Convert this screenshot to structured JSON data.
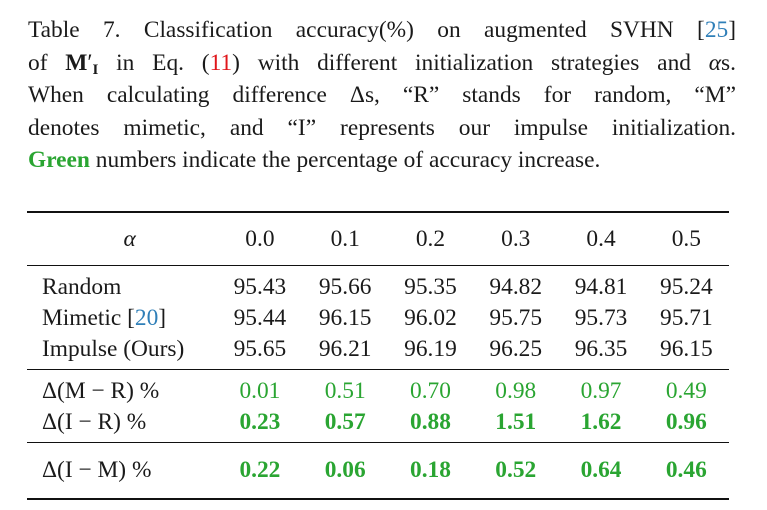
{
  "caption": {
    "line1_a": "Table 7.  Classification accuracy(%) on augmented SVHN [",
    "line1_ref": "25",
    "line1_b": "]",
    "line2_a": "of ",
    "line2_sym": "M",
    "line2_sup": "′",
    "line2_sub": "I",
    "line2_b": " in Eq. (",
    "line2_eq": "11",
    "line2_c": ") with different initialization strategies and ",
    "line2_alpha": "α",
    "line2_d": "s.",
    "line3": "When calculating difference Δs, “R” stands for random, “M”",
    "line4": "denotes mimetic, and “I” represents our impulse initialization.",
    "line5_green": "Green",
    "line5_rest": " numbers indicate the percentage of accuracy increase."
  },
  "table": {
    "header_label": "α",
    "alphas": [
      "0.0",
      "0.1",
      "0.2",
      "0.3",
      "0.4",
      "0.5"
    ],
    "rows": [
      {
        "label": "Random",
        "values": [
          "95.43",
          "95.66",
          "95.35",
          "94.82",
          "94.81",
          "95.24"
        ]
      },
      {
        "label": "Mimetic [",
        "ref": "20",
        "label_end": "]",
        "values": [
          "95.44",
          "96.15",
          "96.02",
          "95.75",
          "95.73",
          "95.71"
        ]
      },
      {
        "label": "Impulse (Ours)",
        "values": [
          "95.65",
          "96.21",
          "96.19",
          "96.25",
          "96.35",
          "96.15"
        ]
      },
      {
        "label": "Δ(M − R) %",
        "values": [
          "0.01",
          "0.51",
          "0.70",
          "0.98",
          "0.97",
          "0.49"
        ]
      },
      {
        "label": "Δ(I − R) %",
        "values": [
          "0.23",
          "0.57",
          "0.88",
          "1.51",
          "1.62",
          "0.96"
        ]
      },
      {
        "label": "Δ(I − M) %",
        "values": [
          "0.22",
          "0.06",
          "0.18",
          "0.52",
          "0.64",
          "0.46"
        ]
      }
    ]
  },
  "colors": {
    "green": "#2aa532",
    "ref_blue": "#2f7fb8",
    "eq_red": "#e0161b"
  }
}
